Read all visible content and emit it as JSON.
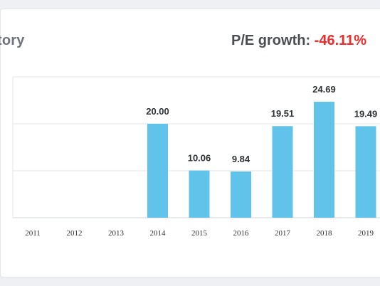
{
  "header": {
    "title": "tory",
    "growth_label": "P/E growth:",
    "growth_value": "-46.11%"
  },
  "colors": {
    "bar": "#62c3ea",
    "negative": "#ef2b2b"
  },
  "chart_data": {
    "type": "bar",
    "categories": [
      "2011",
      "2012",
      "2013",
      "2014",
      "2015",
      "2016",
      "2017",
      "2018",
      "2019"
    ],
    "values": [
      null,
      null,
      null,
      20.0,
      10.06,
      9.84,
      19.51,
      24.69,
      19.49
    ],
    "value_labels": [
      "",
      "",
      "",
      "20.00",
      "10.06",
      "9.84",
      "19.51",
      "24.69",
      "19.49"
    ],
    "ylim": [
      0,
      30
    ],
    "grid": true,
    "legend": "none"
  }
}
